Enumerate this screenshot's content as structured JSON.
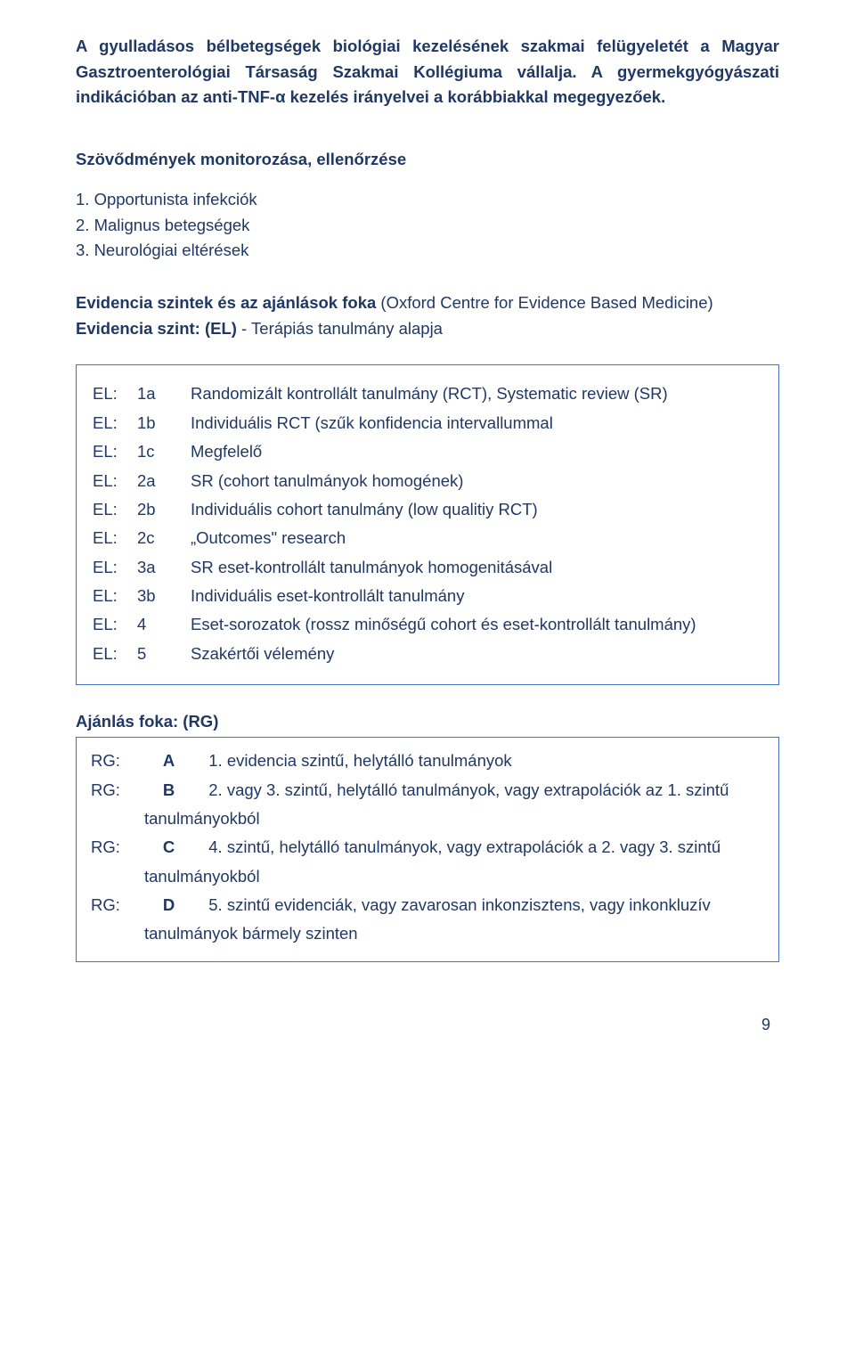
{
  "intro": "A gyulladásos bélbetegségek biológiai kezelésének szakmai felügyeletét a Magyar Gasztroenterológiai Társaság Szakmai Kollégiuma vállalja. A gyermekgyógyászati indikációban az anti-TNF-α kezelés irányelvei a korábbiakkal megegyezőek.",
  "section1_title": "Szövődmények monitorozása, ellenőrzése",
  "list": {
    "i1": "1. Opportunista infekciók",
    "i2": "2. Malignus betegségek",
    "i3": "3. Neurológiai eltérések"
  },
  "ev_line1_bold": "Evidencia szintek és az ajánlások foka",
  "ev_line1_rest": " (Oxford Centre for Evidence Based Medicine)",
  "ev_line2_bold": "Evidencia szint: (EL)",
  "ev_line2_rest": " - Terápiás tanulmány alapja",
  "el": [
    {
      "label": "EL:",
      "code": "1a",
      "desc": "Randomizált kontrollált tanulmány (RCT), Systematic review (SR)"
    },
    {
      "label": "EL:",
      "code": "1b",
      "desc": "Individuális RCT (szűk konfidencia intervallummal"
    },
    {
      "label": "EL:",
      "code": "1c",
      "desc": "Megfelelő"
    },
    {
      "label": "EL:",
      "code": "2a",
      "desc": "SR (cohort tanulmányok homogének)"
    },
    {
      "label": "EL:",
      "code": "2b",
      "desc": "Individuális cohort tanulmány (low qualitiy RCT)"
    },
    {
      "label": "EL:",
      "code": "2c",
      "desc": "„Outcomes\" research"
    },
    {
      "label": "EL:",
      "code": "3a",
      "desc": "SR eset-kontrollált  tanulmányok homogenitásával"
    },
    {
      "label": "EL:",
      "code": "3b",
      "desc": "Individuális eset-kontrollált tanulmány"
    },
    {
      "label": "EL:",
      "code": "4",
      "desc": "Eset-sorozatok (rossz minőségű cohort és eset-kontrollált tanulmány)"
    },
    {
      "label": "EL:",
      "code": "5",
      "desc": "Szakértői vélemény"
    }
  ],
  "rg_title": "Ajánlás foka: (RG)",
  "rg": {
    "a": {
      "label": "RG:",
      "code": "A",
      "desc": "1. evidencia szintű, helytálló tanulmányok"
    },
    "b": {
      "label": "RG:",
      "code": "B",
      "first": "2. vagy 3. szintű, helytálló tanulmányok, vagy extrapolációk az 1. szintű",
      "cont": "tanulmányokból"
    },
    "c": {
      "label": "RG:",
      "code": "C",
      "first": "4. szintű, helytálló tanulmányok, vagy extrapolációk a 2. vagy 3. szintű",
      "cont": "tanulmányokból"
    },
    "d": {
      "label": "RG:",
      "code": "D",
      "first": "5. szintű evidenciák, vagy zavarosan inkonzisztens, vagy inkonkluzív",
      "cont": "tanulmányok bármely szinten"
    }
  },
  "pagenum": "9",
  "colors": {
    "text": "#203864",
    "border": "#4472c4",
    "bg": "#ffffff"
  }
}
